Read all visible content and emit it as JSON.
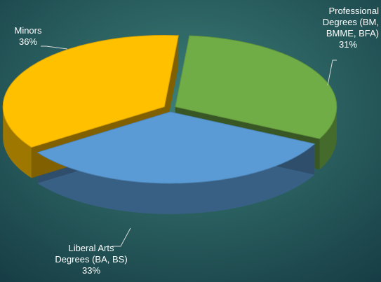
{
  "chart_data": {
    "type": "pie",
    "title": "",
    "categories": [
      "Professional Degrees (BM, BMME, BFA)",
      "Liberal Arts Degrees (BA, BS)",
      "Minors"
    ],
    "values": [
      31,
      33,
      36
    ],
    "labels": [
      {
        "lines": [
          "Professional",
          "Degrees (BM,",
          "BMME, BFA)"
        ],
        "pct": "31%"
      },
      {
        "lines": [
          "Liberal Arts",
          "Degrees (BA, BS)"
        ],
        "pct": "33%"
      },
      {
        "lines": [
          "Minors"
        ],
        "pct": "36%"
      }
    ],
    "colors": [
      "#70ad47",
      "#5b9bd5",
      "#ffc000"
    ],
    "background": "#1d4d52",
    "style": "3d-exploded"
  }
}
